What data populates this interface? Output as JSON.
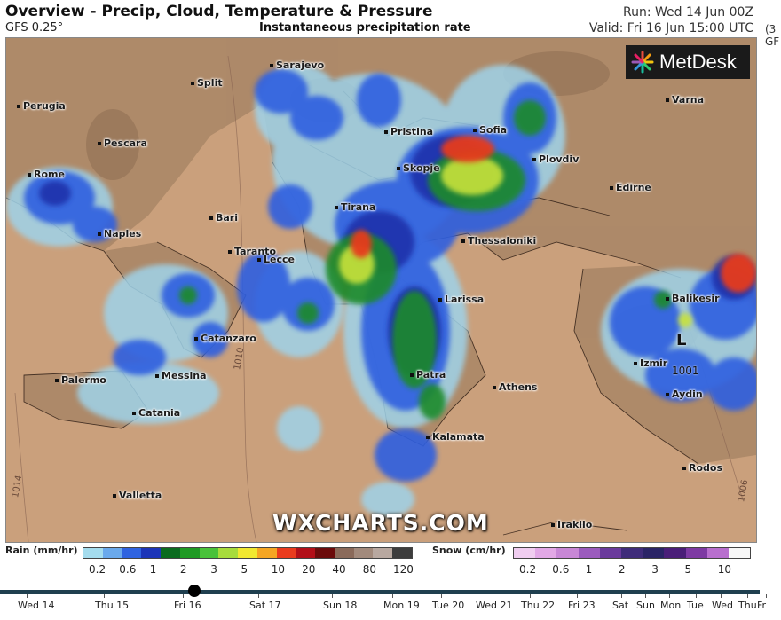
{
  "header": {
    "title": "Overview - Precip, Cloud, Temperature & Pressure",
    "model": "GFS 0.25°",
    "subtitle": "Instantaneous precipitation rate",
    "run": "Run: Wed 14 Jun 00Z",
    "valid": "Valid: Fri 16 Jun 15:00 UTC"
  },
  "side_clip": {
    "line1": "(3",
    "line2": "GF"
  },
  "brand": {
    "logo_text": "MetDesk",
    "watermark": "WXCHARTS.COM"
  },
  "cities": [
    "Sarajevo",
    "Split",
    "Perugia",
    "Pescara",
    "Rome",
    "Pristina",
    "Sofia",
    "Plovdiv",
    "Varna",
    "Skopje",
    "Edirne",
    "Tirana",
    "Bari",
    "Naples",
    "Thessaloniki",
    "Taranto",
    "Lecce",
    "Larissa",
    "Balikesir",
    "Catanzaro",
    "Izmir",
    "Aydin",
    "Palermo",
    "Messina",
    "Patra",
    "Athens",
    "Catania",
    "Kalamata",
    "Rodos",
    "Valletta",
    "Iraklio"
  ],
  "pressure": {
    "low_label": "L",
    "low_value": "1001",
    "isobars": [
      "1010",
      "1014",
      "1006"
    ]
  },
  "legend": {
    "rain_title": "Rain (mm/hr)",
    "rain_ticks": [
      "0.2",
      "0.6",
      "1",
      "2",
      "3",
      "5",
      "10",
      "20",
      "40",
      "80",
      "120"
    ],
    "rain_colors": [
      "#a4dcee",
      "#6aa9ec",
      "#2f63e0",
      "#1c35b8",
      "#0b6b1f",
      "#1f9a24",
      "#49c23a",
      "#a7dc3c",
      "#f1e830",
      "#f5a623",
      "#ea3b1d",
      "#b20f18",
      "#6b0b0b",
      "#8a6a5a",
      "#a28a7c",
      "#b8a8a0",
      "#3d3d3d"
    ],
    "snow_title": "Snow (cm/hr)",
    "snow_ticks": [
      "0.2",
      "0.6",
      "1",
      "2",
      "3",
      "5",
      "10"
    ],
    "snow_colors": [
      "#f0cdf0",
      "#e2a8e6",
      "#c887d6",
      "#9b5bbd",
      "#6a3a9c",
      "#3f2c7a",
      "#2a2466",
      "#4a1e78",
      "#7e3aa3",
      "#b86fce",
      "#f7f7f7"
    ]
  },
  "timeline": {
    "days": [
      "Wed 14",
      "Thu 15",
      "Fri 16",
      "Sat 17",
      "Sun 18",
      "Mon 19",
      "Tue 20",
      "Wed 21",
      "Thu 22",
      "Fri 23",
      "Sat",
      "Sun",
      "Mon",
      "Tue",
      "Wed",
      "Thu",
      "Fr"
    ],
    "current_index": 2
  }
}
